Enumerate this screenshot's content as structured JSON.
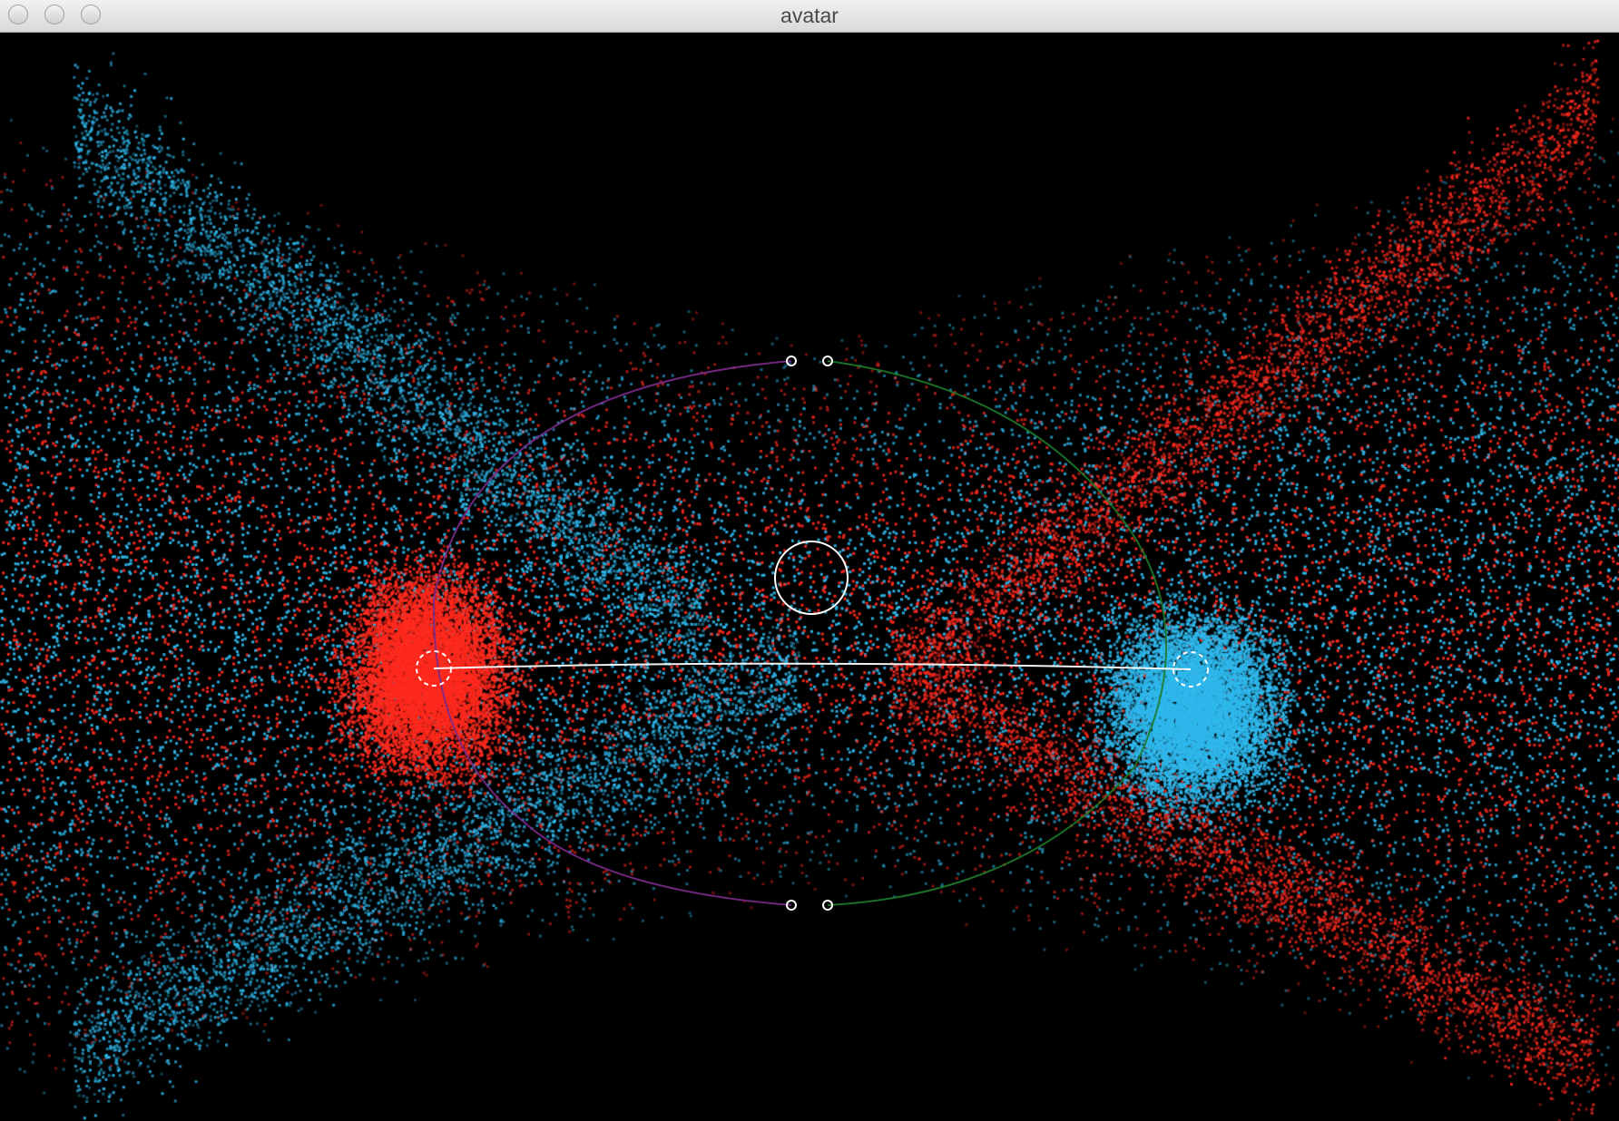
{
  "window": {
    "title": "avatar"
  },
  "colors": {
    "background": "#000000",
    "red_particles": "#ff2a1e",
    "blue_particles": "#2fb8ec",
    "left_arc": "#7a2a8a",
    "right_arc": "#1e7a2a",
    "markers": "#ffffff"
  }
}
